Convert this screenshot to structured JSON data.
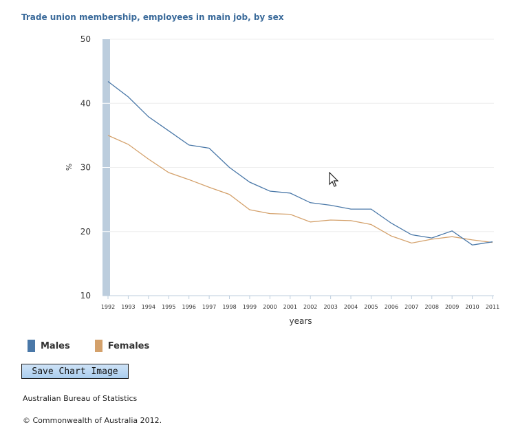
{
  "chart_data": {
    "type": "line",
    "title": "Trade union membership, employees in main job, by sex",
    "xlabel": "years",
    "ylabel": "%",
    "ylim": [
      10,
      50
    ],
    "yticks": [
      "10",
      "20",
      "30",
      "40",
      "50"
    ],
    "categories": [
      "1992",
      "1993",
      "1994",
      "1995",
      "1996",
      "1997",
      "1998",
      "1999",
      "2000",
      "2001",
      "2002",
      "2003",
      "2004",
      "2005",
      "2006",
      "2007",
      "2008",
      "2009",
      "2010",
      "2011"
    ],
    "series": [
      {
        "name": "Males",
        "color": "#4a78a8",
        "values": [
          43.4,
          41.0,
          37.9,
          35.7,
          33.5,
          33.0,
          30.0,
          27.7,
          26.3,
          26.0,
          24.5,
          24.1,
          23.5,
          23.5,
          21.3,
          19.5,
          19.0,
          20.1,
          17.9,
          18.4
        ]
      },
      {
        "name": "Females",
        "color": "#d4a16b",
        "values": [
          35.0,
          33.6,
          31.3,
          29.2,
          28.1,
          26.9,
          25.8,
          23.4,
          22.8,
          22.7,
          21.5,
          21.8,
          21.7,
          21.1,
          19.3,
          18.2,
          18.8,
          19.2,
          18.7,
          18.3
        ]
      }
    ],
    "grid": true,
    "legend": "bottom-left"
  },
  "ui": {
    "save_button": "Save Chart Image",
    "footer_org": "Australian Bureau of Statistics",
    "footer_copyright": "© Commonwealth of Australia 2012."
  }
}
